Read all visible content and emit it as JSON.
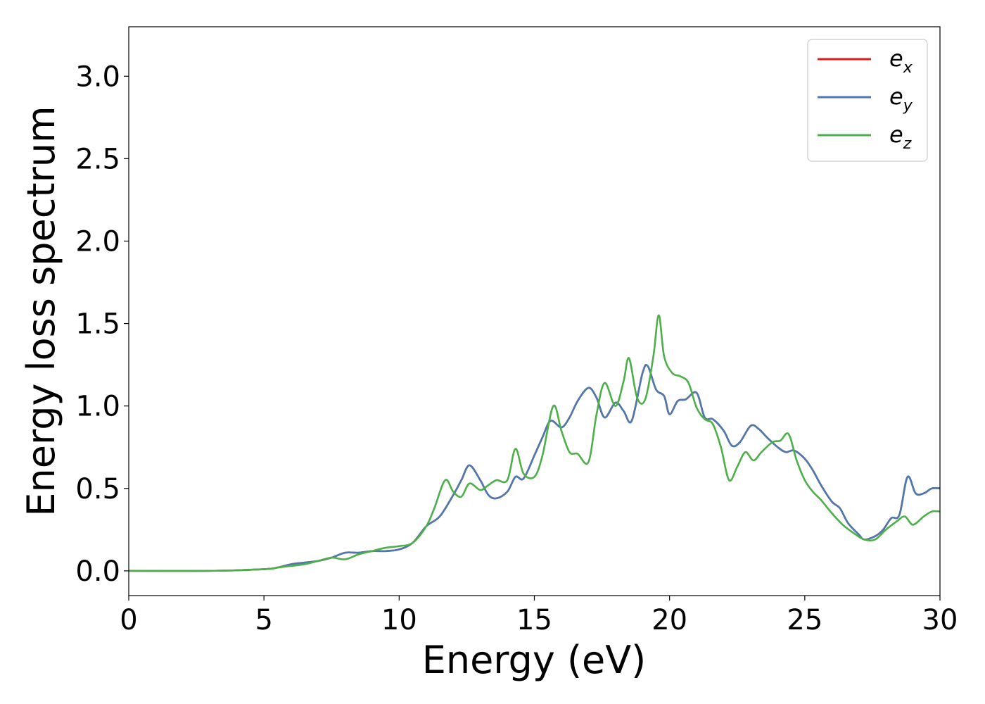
{
  "chart_data": {
    "type": "line",
    "title": "",
    "xlabel": "Energy (eV)",
    "ylabel": "Energy loss spectrum",
    "xlim": [
      0,
      30
    ],
    "ylim": [
      -0.15,
      3.3
    ],
    "xticks": [
      0,
      5,
      10,
      15,
      20,
      25,
      30
    ],
    "xtick_labels": [
      "0",
      "5",
      "10",
      "15",
      "20",
      "25",
      "30"
    ],
    "yticks": [
      0.0,
      0.5,
      1.0,
      1.5,
      2.0,
      2.5,
      3.0
    ],
    "ytick_labels": [
      "0.0",
      "0.5",
      "1.0",
      "1.5",
      "2.0",
      "2.5",
      "3.0"
    ],
    "grid": false,
    "legend_position": "top-right",
    "series": [
      {
        "name": "e",
        "subscript": "x",
        "color": "#e41a1c",
        "x": [
          0,
          3,
          5,
          5.5,
          6,
          6.5,
          7,
          7.5,
          8,
          8.5,
          9,
          9.5,
          10,
          10.5,
          11,
          11.5,
          12,
          12.3,
          12.6,
          13,
          13.3,
          13.6,
          14,
          14.3,
          14.6,
          15,
          15.3,
          15.6,
          16,
          16.3,
          16.6,
          17,
          17.3,
          17.6,
          18,
          18.3,
          18.6,
          19,
          19.2,
          19.5,
          19.8,
          20,
          20.3,
          20.6,
          21,
          21.3,
          21.6,
          22,
          22.3,
          22.6,
          23,
          23.3,
          23.6,
          24,
          24.3,
          24.6,
          25,
          25.3,
          25.6,
          26,
          26.3,
          26.6,
          27,
          27.2,
          27.6,
          27.9,
          28.2,
          28.5,
          28.8,
          29.1,
          29.4,
          29.7,
          30
        ],
        "y": [
          0,
          0,
          0.01,
          0.02,
          0.04,
          0.05,
          0.06,
          0.08,
          0.11,
          0.11,
          0.12,
          0.12,
          0.13,
          0.17,
          0.27,
          0.33,
          0.46,
          0.55,
          0.64,
          0.55,
          0.46,
          0.44,
          0.48,
          0.57,
          0.56,
          0.7,
          0.81,
          0.91,
          0.87,
          0.93,
          1.03,
          1.11,
          1.05,
          0.93,
          1.02,
          0.97,
          0.91,
          1.2,
          1.24,
          1.1,
          1.06,
          0.95,
          1.03,
          1.04,
          1.08,
          0.93,
          0.92,
          0.85,
          0.76,
          0.78,
          0.88,
          0.86,
          0.81,
          0.75,
          0.72,
          0.73,
          0.68,
          0.61,
          0.52,
          0.42,
          0.38,
          0.29,
          0.22,
          0.19,
          0.21,
          0.25,
          0.32,
          0.34,
          0.57,
          0.47,
          0.47,
          0.5,
          0.5
        ]
      },
      {
        "name": "e",
        "subscript": "y",
        "color": "#4a7ab0",
        "x": [
          0,
          3,
          5,
          5.5,
          6,
          6.5,
          7,
          7.5,
          8,
          8.5,
          9,
          9.5,
          10,
          10.5,
          11,
          11.5,
          12,
          12.3,
          12.6,
          13,
          13.3,
          13.6,
          14,
          14.3,
          14.6,
          15,
          15.3,
          15.6,
          16,
          16.3,
          16.6,
          17,
          17.3,
          17.6,
          18,
          18.3,
          18.6,
          19,
          19.2,
          19.5,
          19.8,
          20,
          20.3,
          20.6,
          21,
          21.3,
          21.6,
          22,
          22.3,
          22.6,
          23,
          23.3,
          23.6,
          24,
          24.3,
          24.6,
          25,
          25.3,
          25.6,
          26,
          26.3,
          26.6,
          27,
          27.2,
          27.6,
          27.9,
          28.2,
          28.5,
          28.8,
          29.1,
          29.4,
          29.7,
          30
        ],
        "y": [
          0,
          0,
          0.01,
          0.02,
          0.04,
          0.05,
          0.06,
          0.08,
          0.11,
          0.11,
          0.12,
          0.12,
          0.13,
          0.17,
          0.27,
          0.33,
          0.46,
          0.55,
          0.64,
          0.55,
          0.46,
          0.44,
          0.48,
          0.57,
          0.56,
          0.7,
          0.81,
          0.91,
          0.87,
          0.93,
          1.03,
          1.11,
          1.05,
          0.93,
          1.02,
          0.97,
          0.91,
          1.2,
          1.24,
          1.1,
          1.06,
          0.95,
          1.03,
          1.04,
          1.08,
          0.93,
          0.92,
          0.85,
          0.76,
          0.78,
          0.88,
          0.86,
          0.81,
          0.75,
          0.72,
          0.73,
          0.68,
          0.61,
          0.52,
          0.42,
          0.38,
          0.29,
          0.22,
          0.19,
          0.21,
          0.25,
          0.32,
          0.34,
          0.57,
          0.47,
          0.47,
          0.5,
          0.5
        ]
      },
      {
        "name": "e",
        "subscript": "z",
        "color": "#4daf4a",
        "x": [
          0,
          3,
          5,
          5.5,
          6,
          6.5,
          7,
          7.5,
          8,
          8.5,
          9,
          9.5,
          10,
          10.5,
          11,
          11.3,
          11.7,
          12,
          12.3,
          12.6,
          13,
          13.3,
          13.6,
          14,
          14.3,
          14.6,
          15,
          15.3,
          15.7,
          16,
          16.3,
          16.6,
          17,
          17.3,
          17.6,
          18,
          18.3,
          18.5,
          18.8,
          19.1,
          19.4,
          19.6,
          19.8,
          20.1,
          20.4,
          20.7,
          21,
          21.3,
          21.6,
          21.9,
          22.2,
          22.5,
          22.8,
          23.1,
          23.4,
          23.8,
          24.1,
          24.4,
          24.7,
          25,
          25.3,
          25.6,
          26,
          26.4,
          26.8,
          27.2,
          27.6,
          28,
          28.4,
          28.7,
          29,
          29.4,
          29.7,
          30
        ],
        "y": [
          0,
          0,
          0.01,
          0.02,
          0.03,
          0.04,
          0.06,
          0.08,
          0.07,
          0.1,
          0.12,
          0.14,
          0.15,
          0.17,
          0.27,
          0.38,
          0.55,
          0.48,
          0.45,
          0.53,
          0.49,
          0.52,
          0.55,
          0.55,
          0.74,
          0.59,
          0.57,
          0.7,
          1.0,
          0.85,
          0.72,
          0.71,
          0.66,
          0.95,
          1.14,
          1.0,
          1.15,
          1.29,
          1.05,
          1.04,
          1.3,
          1.55,
          1.3,
          1.2,
          1.18,
          1.14,
          0.99,
          0.92,
          0.89,
          0.75,
          0.55,
          0.63,
          0.72,
          0.67,
          0.72,
          0.78,
          0.79,
          0.83,
          0.67,
          0.55,
          0.48,
          0.43,
          0.35,
          0.28,
          0.23,
          0.19,
          0.19,
          0.25,
          0.3,
          0.33,
          0.28,
          0.33,
          0.36,
          0.36
        ]
      }
    ]
  }
}
